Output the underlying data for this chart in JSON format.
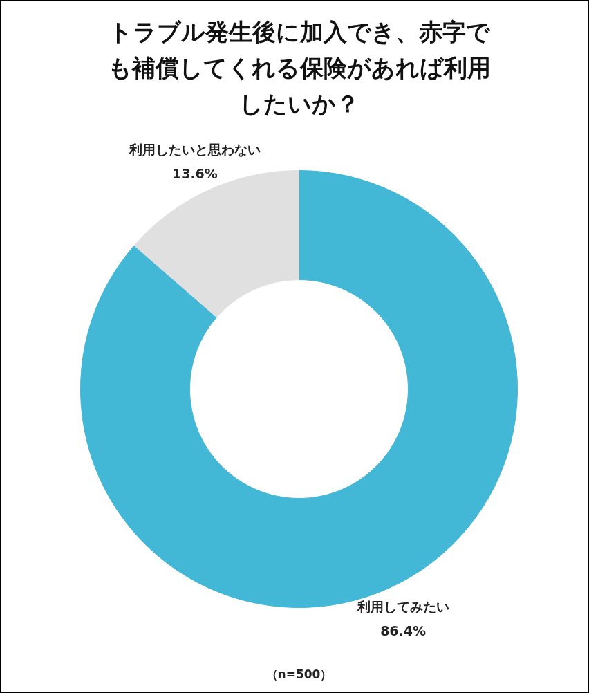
{
  "chart_data": {
    "type": "donut",
    "title": "トラブル発生後に加入でき、赤字でも補償してくれる保険があれば利用したいか？",
    "categories": [
      "利用してみたい",
      "利用したいと思わない"
    ],
    "values": [
      86.4,
      13.6
    ],
    "value_labels": [
      "86.4%",
      "13.6%"
    ],
    "colors": [
      "#42b7d6",
      "#e0e0e0"
    ],
    "annotations": [
      "（n=500）"
    ]
  }
}
